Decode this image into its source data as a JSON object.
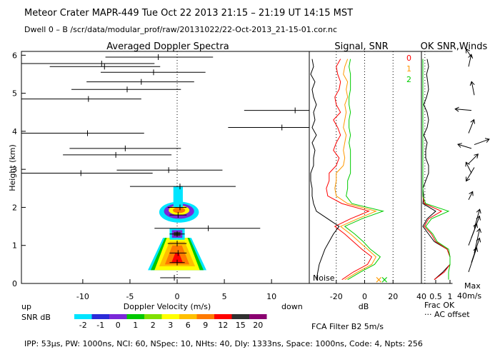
{
  "header": {
    "line1": "Meteor Crater   MAPR-449   Tue Oct 22 2013 21:15 – 21:19 UT 14:15 MST",
    "line2": "Dwell  0 –  B    /scr/data/modular_prof/raw/20131022/22-Oct-2013_21-15-01.cor.nc"
  },
  "footer": {
    "params": "IPP:  53µs,  PW: 1000ns,  NCI:  60,  NSpec: 10, NHts: 40,  Dly: 1333ns,  Space: 1000ns,  Code: 4,  Npts: 256",
    "filter": "FCA Filter B2   5m/s"
  },
  "colors": {
    "scale": [
      "#00e5ff",
      "#2b2bd8",
      "#7a28d8",
      "#00c800",
      "#80e000",
      "#ffff00",
      "#ffc000",
      "#ff7a00",
      "#ff0000",
      "#303030",
      "#8a0070"
    ],
    "snr_lines": [
      "#ff0000",
      "#ff9900",
      "#00cc00"
    ]
  },
  "chart_data": [
    {
      "id": "doppler",
      "type": "scatter",
      "title": "Averaged Doppler Spectra",
      "xlabel": "Doppler Velocity (m/s)",
      "ylabel": "Height (km)",
      "xlim": [
        -16.5,
        14
      ],
      "ylim": [
        0,
        6.1
      ],
      "xticks": [
        -10,
        -5,
        0,
        5,
        10
      ],
      "yticks": [
        0,
        1,
        2,
        3,
        4,
        5,
        6
      ],
      "label_up": "up",
      "label_down": "down",
      "colorbar_label": "SNR dB",
      "colorbar_ticks": [
        "-2",
        "-1",
        "0",
        "1",
        "2",
        "3",
        "6",
        "9",
        "12",
        "15",
        "20"
      ],
      "points": [
        {
          "h": 0.15,
          "v": -0.3,
          "lo": -1.8,
          "hi": 1.4
        },
        {
          "h": 0.55,
          "v": 0.0,
          "lo": -0.8,
          "hi": 0.8
        },
        {
          "h": 0.8,
          "v": 0.1,
          "lo": -0.8,
          "hi": 1.0
        },
        {
          "h": 1.05,
          "v": 0.0,
          "lo": -1.0,
          "hi": 1.0
        },
        {
          "h": 1.3,
          "v": 0.0,
          "lo": -0.8,
          "hi": 0.8
        },
        {
          "h": 1.45,
          "v": 3.3,
          "lo": -2.4,
          "hi": 8.8
        },
        {
          "h": 1.8,
          "v": 0.1,
          "lo": -0.8,
          "hi": 1.0
        },
        {
          "h": 2.0,
          "v": 0.3,
          "lo": -1.0,
          "hi": 1.0
        },
        {
          "h": 2.55,
          "v": 0.3,
          "lo": -5.0,
          "hi": 6.2
        },
        {
          "h": 2.9,
          "v": -10.2,
          "lo": -16.5,
          "hi": -2.6
        },
        {
          "h": 2.98,
          "v": -0.9,
          "lo": -6.4,
          "hi": 4.8
        },
        {
          "h": 3.38,
          "v": -6.5,
          "lo": -12.1,
          "hi": -0.6
        },
        {
          "h": 3.55,
          "v": -5.5,
          "lo": -11.4,
          "hi": 0.4
        },
        {
          "h": 3.95,
          "v": -9.5,
          "lo": -16.5,
          "hi": -3.5
        },
        {
          "h": 4.1,
          "v": 11.1,
          "lo": 5.4,
          "hi": 14.0
        },
        {
          "h": 4.55,
          "v": 12.5,
          "lo": 7.1,
          "hi": 14.0
        },
        {
          "h": 4.85,
          "v": -9.4,
          "lo": -16.5,
          "hi": -3.8
        },
        {
          "h": 5.1,
          "v": -5.3,
          "lo": -11.2,
          "hi": 0.4
        },
        {
          "h": 5.3,
          "v": -3.8,
          "lo": -9.6,
          "hi": 1.8
        },
        {
          "h": 5.55,
          "v": -2.5,
          "lo": -8.1,
          "hi": 3.0
        },
        {
          "h": 5.7,
          "v": -7.7,
          "lo": -13.5,
          "hi": -1.8
        },
        {
          "h": 5.78,
          "v": -8.0,
          "lo": -16.5,
          "hi": -2.4
        },
        {
          "h": 5.95,
          "v": -2.0,
          "lo": -7.6,
          "hi": 3.8
        }
      ]
    },
    {
      "id": "snr",
      "type": "line",
      "title": "Signal, SNR",
      "xlabel": "dB",
      "xlim": [
        -39,
        40
      ],
      "ylim": [
        0,
        6.1
      ],
      "xticks": [
        -20,
        0,
        20,
        40
      ],
      "noise_label": "Noise",
      "legend": [
        "0",
        "1",
        "2"
      ],
      "heights": [
        0.1,
        0.3,
        0.5,
        0.7,
        0.9,
        1.1,
        1.3,
        1.5,
        1.7,
        1.9,
        2.1,
        2.3,
        2.5,
        2.7,
        2.9,
        3.1,
        3.3,
        3.5,
        3.7,
        3.9,
        4.1,
        4.3,
        4.5,
        4.7,
        4.9,
        5.1,
        5.3,
        5.5,
        5.7,
        5.9
      ],
      "series": [
        {
          "name": "0",
          "values": [
            -16,
            -8,
            2,
            5,
            -2,
            -8,
            -14,
            -21,
            -10,
            3,
            -16,
            -26,
            -27,
            -25,
            -25,
            -20,
            -18,
            -22,
            -20,
            -17,
            -19,
            -22,
            -17,
            -20,
            -21,
            -18,
            -17,
            -19,
            -20,
            -17
          ]
        },
        {
          "name": "1",
          "values": [
            -14,
            -5,
            5,
            8,
            2,
            -4,
            -10,
            -17,
            -5,
            8,
            -12,
            -20,
            -21,
            -20,
            -20,
            -15,
            -14,
            -15,
            -14,
            -13,
            -15,
            -14,
            -13,
            -14,
            -12,
            -13,
            -12,
            -15,
            -14,
            -12
          ]
        },
        {
          "name": "2",
          "values": [
            -12,
            -3,
            7,
            11,
            4,
            -1,
            -7,
            -14,
            -2,
            13,
            -9,
            -13,
            -12,
            -12,
            -10,
            -10,
            -10,
            -10,
            -11,
            -10,
            -11,
            -11,
            -10,
            -11,
            -11,
            -10,
            -10,
            -10,
            -11,
            -10
          ]
        },
        {
          "name": "noise",
          "values": [
            -34,
            -33,
            -32,
            -30,
            -28,
            -25,
            -22,
            -18,
            -26,
            -34,
            -36,
            -37,
            -37,
            -38,
            -38,
            -36,
            -36,
            -35,
            -37,
            -34,
            -37,
            -35,
            -36,
            -34,
            -36,
            -37,
            -35,
            -38,
            -36,
            -37
          ]
        }
      ]
    },
    {
      "id": "ok",
      "type": "line",
      "title": "OK",
      "xlabel": "Frac OK",
      "note": "··· AC offset",
      "xlim": [
        0,
        1.1
      ],
      "ylim": [
        0,
        6.1
      ],
      "xtick_labels": [
        "0.5",
        "1"
      ],
      "heights": [
        0.1,
        0.3,
        0.5,
        0.7,
        0.9,
        1.1,
        1.3,
        1.5,
        1.7,
        1.9,
        2.1,
        2.3,
        2.5,
        2.7,
        2.9,
        3.1,
        3.3,
        3.5,
        3.7,
        3.9,
        4.1,
        4.3,
        4.5,
        4.7,
        4.9,
        5.1,
        5.3,
        5.5,
        5.7,
        5.9
      ],
      "series": [
        {
          "name": "0",
          "values": [
            0.45,
            0.75,
            1.0,
            1.0,
            0.9,
            0.45,
            0.25,
            0.05,
            0.2,
            0.5,
            0.05,
            0.08,
            0.05,
            0.15,
            0.25,
            0.25,
            0.15,
            0.15,
            0.2,
            0.08,
            0.2,
            0.25,
            0.2,
            0.08,
            0.18,
            0.25,
            0.22,
            0.18,
            0.25,
            0.2
          ]
        },
        {
          "name": "1",
          "values": [
            0.45,
            0.8,
            1.0,
            1.0,
            0.9,
            0.5,
            0.35,
            0.1,
            0.25,
            0.7,
            0.1,
            0.05,
            0.05,
            0.05,
            0.05,
            0.05,
            0.05,
            0.05,
            0.05,
            0.05,
            0.05,
            0.05,
            0.05,
            0.05,
            0.05,
            0.05,
            0.05,
            0.05,
            0.05,
            0.05
          ]
        },
        {
          "name": "2",
          "values": [
            0.95,
            0.95,
            1.0,
            1.0,
            0.95,
            0.55,
            0.4,
            0.15,
            0.35,
            0.95,
            0.15,
            0.05,
            0.05,
            0.05,
            0.05,
            0.05,
            0.05,
            0.05,
            0.05,
            0.05,
            0.05,
            0.05,
            0.05,
            0.05,
            0.05,
            0.05,
            0.05,
            0.05,
            0.05,
            0.05
          ]
        }
      ]
    },
    {
      "id": "winds",
      "type": "scatter",
      "title": "SNR,Winds",
      "scale_label": "Max",
      "scale_value": "40m/s",
      "barbs": [
        {
          "h": 0.3,
          "u": 0.3,
          "v": 0.9
        },
        {
          "h": 0.55,
          "u": 0.3,
          "v": 0.9
        },
        {
          "h": 0.8,
          "u": 0.2,
          "v": 0.9
        },
        {
          "h": 1.0,
          "u": 0.3,
          "v": 0.8
        },
        {
          "h": 1.2,
          "u": 0.3,
          "v": 0.8
        },
        {
          "h": 1.45,
          "u": 0.2,
          "v": 0.7
        },
        {
          "h": 2.2,
          "u": 0.15,
          "v": 0.3
        },
        {
          "h": 2.9,
          "u": -0.2,
          "v": 0.4
        },
        {
          "h": 3.05,
          "u": -0.3,
          "v": -0.5
        },
        {
          "h": 3.15,
          "u": 0.35,
          "v": 0.35
        },
        {
          "h": 3.55,
          "u": -0.5,
          "v": 0.15
        },
        {
          "h": 3.65,
          "u": 0.55,
          "v": 0.2
        },
        {
          "h": 3.95,
          "u": 0.2,
          "v": 0.5
        },
        {
          "h": 4.55,
          "u": -0.6,
          "v": 0.05
        },
        {
          "h": 4.95,
          "u": -0.1,
          "v": 0.5
        },
        {
          "h": 5.7,
          "u": 0.1,
          "v": 0.45
        },
        {
          "h": 5.95,
          "u": -0.2,
          "v": 0.3
        }
      ]
    }
  ]
}
